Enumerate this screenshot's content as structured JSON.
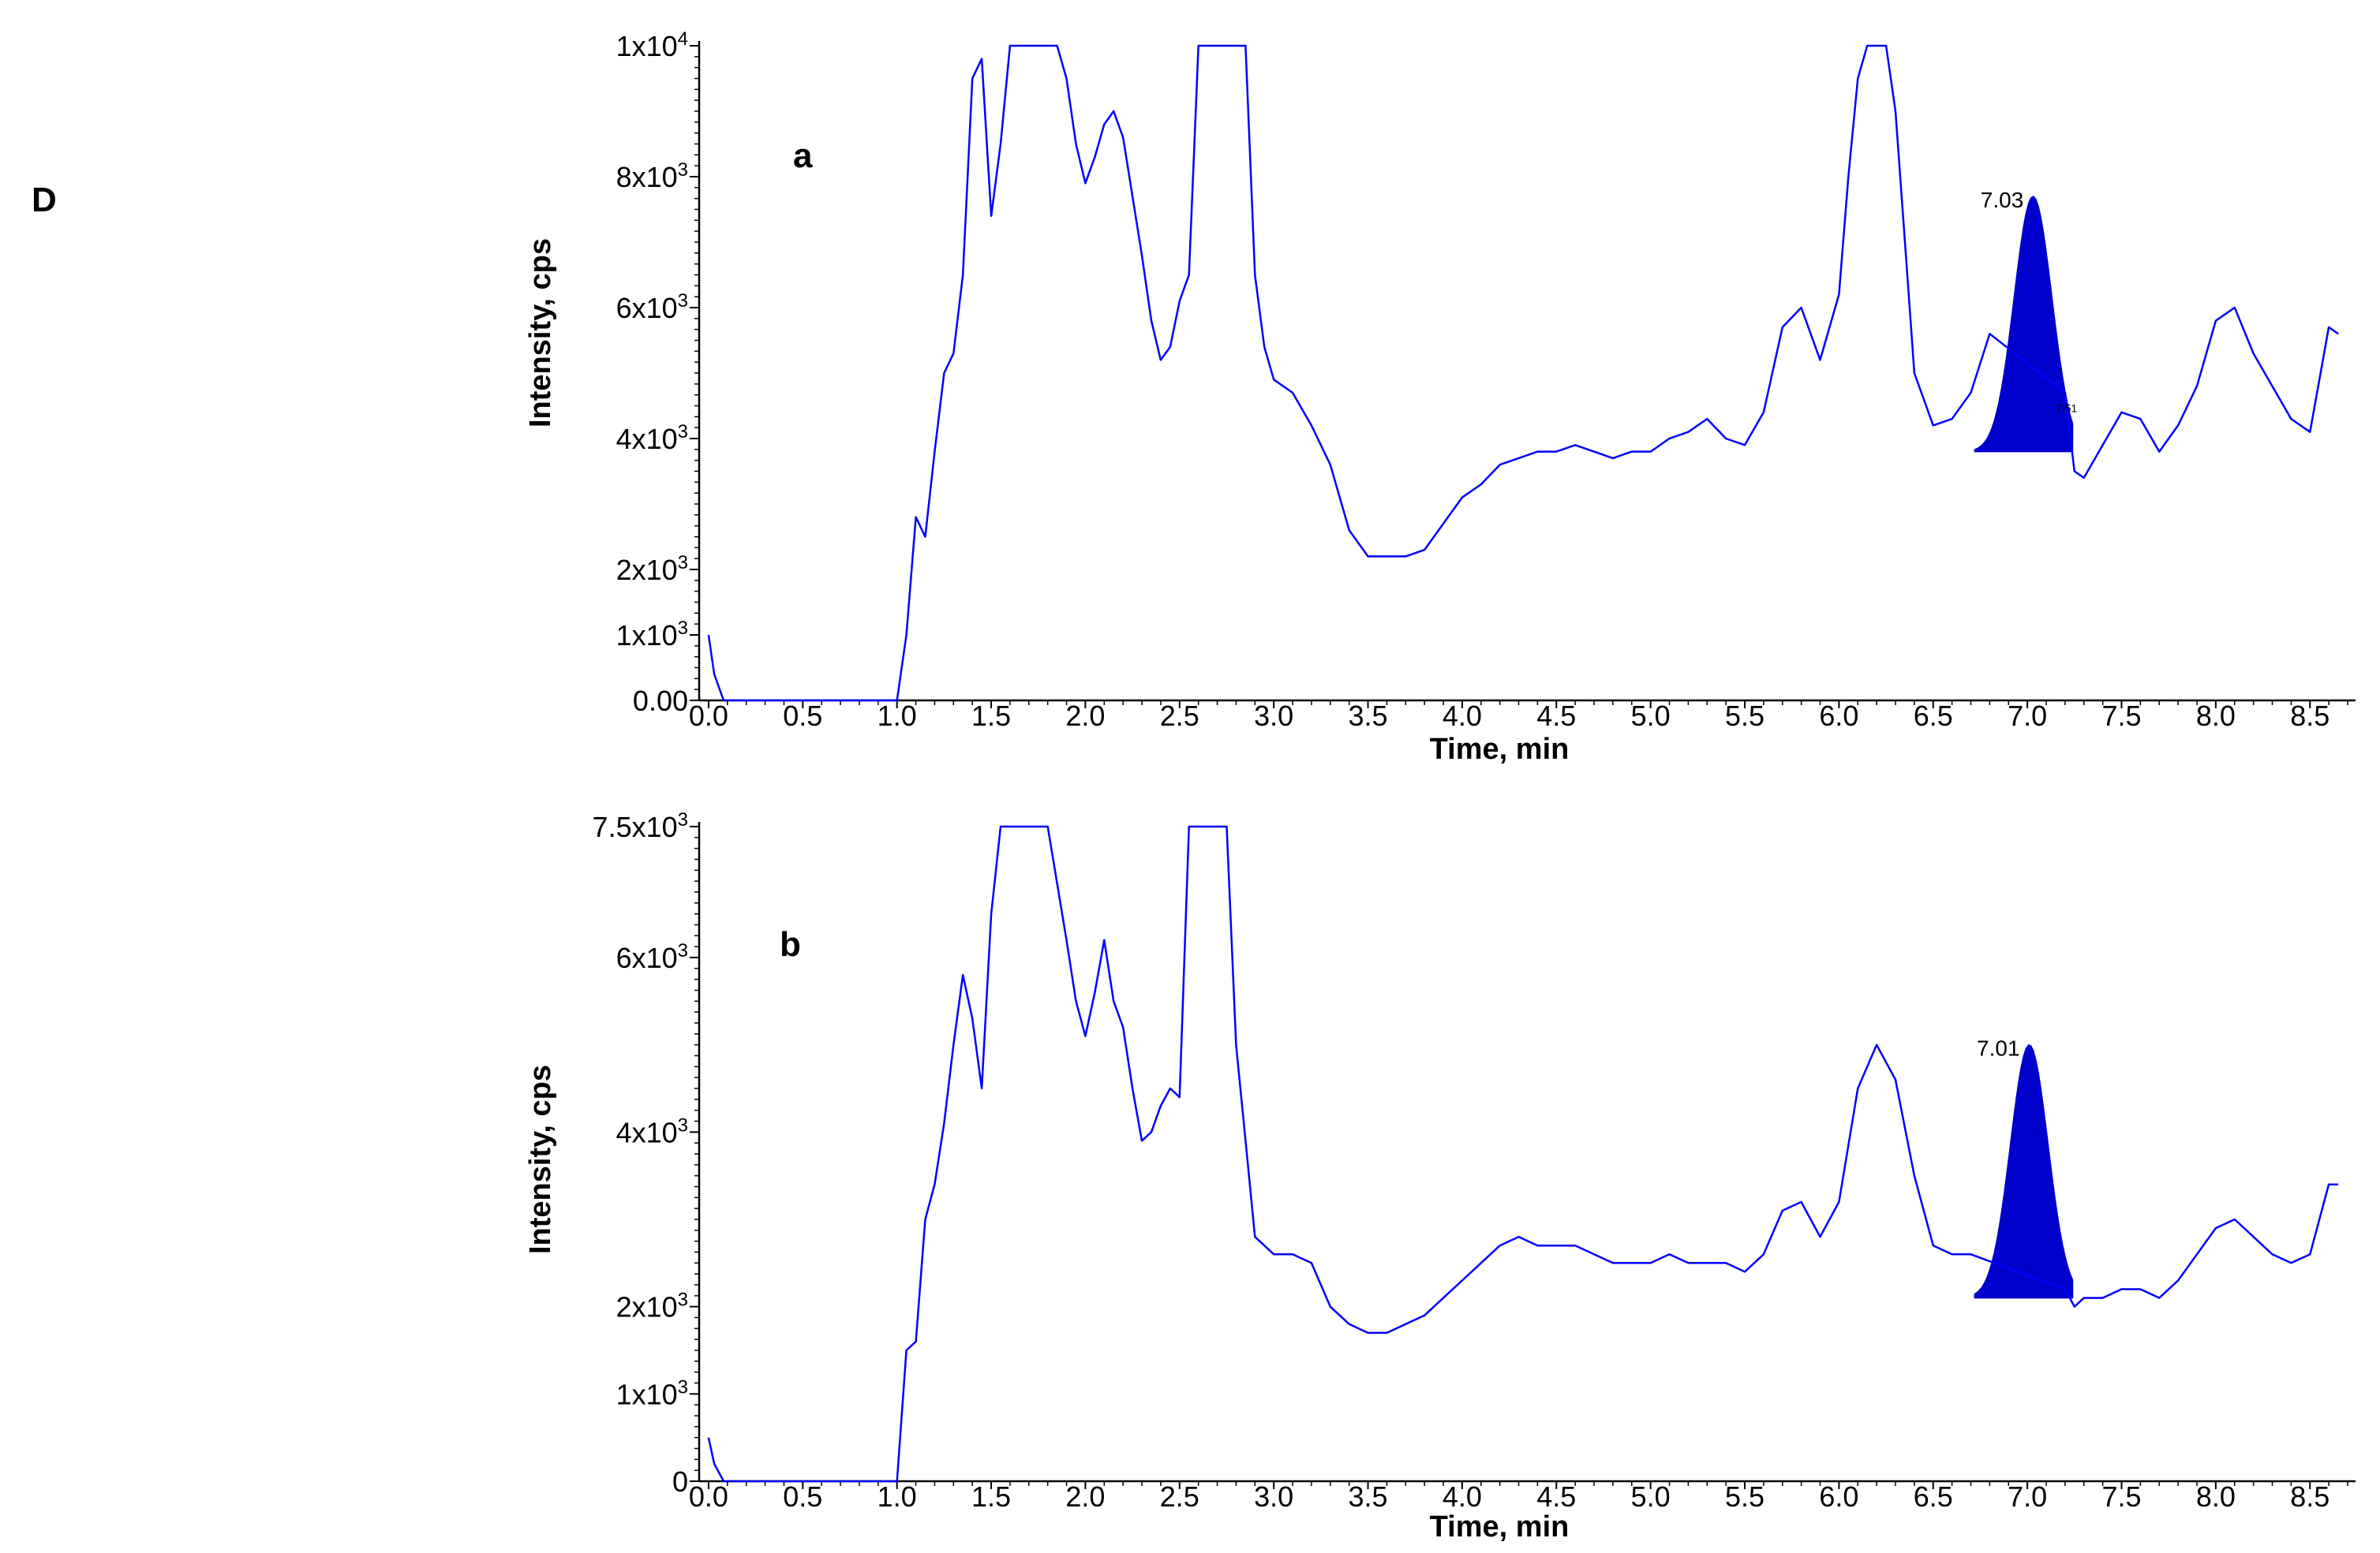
{
  "figure_label": "D",
  "colors": {
    "trace": "#0000FF",
    "peak_fill": "#0000CC",
    "axis": "#000000"
  },
  "chart_data": [
    {
      "type": "line",
      "panel_label": "a",
      "xlabel": "Time, min",
      "ylabel": "Intensity, cps",
      "xlim": [
        -0.05,
        8.7
      ],
      "ylim": [
        0,
        10000
      ],
      "x_ticks": [
        0.0,
        0.5,
        1.0,
        1.5,
        2.0,
        2.5,
        3.0,
        3.5,
        4.0,
        4.5,
        5.0,
        5.5,
        6.0,
        6.5,
        7.0,
        7.5,
        8.0,
        8.5
      ],
      "x_tick_labels": [
        "0.0",
        "0.5",
        "1.0",
        "1.5",
        "2.0",
        "2.5",
        "3.0",
        "3.5",
        "4.0",
        "4.5",
        "5.0",
        "5.5",
        "6.0",
        "6.5",
        "7.0",
        "7.5",
        "8.0",
        "8.5"
      ],
      "y_ticks": [
        0,
        1000,
        2000,
        4000,
        6000,
        8000,
        10000
      ],
      "y_tick_labels": [
        {
          "mantissa": "0.00",
          "exp": ""
        },
        {
          "mantissa": "1x10",
          "exp": "3"
        },
        {
          "mantissa": "2x10",
          "exp": "3"
        },
        {
          "mantissa": "4x10",
          "exp": "3"
        },
        {
          "mantissa": "6x10",
          "exp": "3"
        },
        {
          "mantissa": "8x10",
          "exp": "3"
        },
        {
          "mantissa": "1x10",
          "exp": "4"
        }
      ],
      "series": [
        {
          "x": [
            0.0,
            0.03,
            0.08,
            0.2,
            0.5,
            0.8,
            1.0,
            1.05,
            1.1,
            1.15,
            1.2,
            1.25,
            1.3,
            1.35,
            1.4,
            1.45,
            1.5,
            1.55,
            1.6,
            1.65,
            1.85,
            1.9,
            1.95,
            2.0,
            2.05,
            2.1,
            2.15,
            2.2,
            2.25,
            2.3,
            2.35,
            2.4,
            2.45,
            2.5,
            2.55,
            2.6,
            2.65,
            2.85,
            2.9,
            2.95,
            3.0,
            3.1,
            3.2,
            3.3,
            3.4,
            3.5,
            3.6,
            3.7,
            3.8,
            3.9,
            4.0,
            4.1,
            4.2,
            4.3,
            4.4,
            4.5,
            4.6,
            4.7,
            4.8,
            4.9,
            5.0,
            5.1,
            5.2,
            5.3,
            5.4,
            5.5,
            5.6,
            5.7,
            5.8,
            5.9,
            6.0,
            6.05,
            6.1,
            6.15,
            6.25,
            6.3,
            6.35,
            6.4,
            6.5,
            6.6,
            6.7,
            6.8,
            7.2,
            7.25,
            7.3,
            7.4,
            7.5,
            7.6,
            7.7,
            7.8,
            7.9,
            8.0,
            8.1,
            8.2,
            8.3,
            8.4,
            8.5,
            8.6,
            8.65
          ],
          "y": [
            1000,
            400,
            0,
            0,
            0,
            0,
            0,
            1000,
            2800,
            2500,
            3800,
            5000,
            5300,
            6500,
            9500,
            9800,
            7400,
            8500,
            10000,
            10000,
            10000,
            9500,
            8500,
            7900,
            8300,
            8800,
            9000,
            8600,
            7700,
            6800,
            5800,
            5200,
            5400,
            6100,
            6500,
            10000,
            10000,
            10000,
            6500,
            5400,
            4900,
            4700,
            4200,
            3600,
            2600,
            2200,
            2200,
            2200,
            2300,
            2700,
            3100,
            3300,
            3600,
            3700,
            3800,
            3800,
            3900,
            3800,
            3700,
            3800,
            3800,
            4000,
            4100,
            4300,
            4000,
            3900,
            4400,
            5700,
            6000,
            5200,
            6200,
            8000,
            9500,
            10000,
            10000,
            9000,
            7000,
            5000,
            4200,
            4300,
            4700,
            5600,
            4700,
            3500,
            3400,
            3900,
            4400,
            4300,
            3800,
            4200,
            4800,
            5800,
            6000,
            5300,
            4800,
            4300,
            4100,
            5700,
            5600
          ]
        }
      ],
      "peak": {
        "label": "7.03",
        "apex_x": 7.03,
        "apex_y": 7700,
        "start_x": 6.72,
        "end_x": 7.24,
        "baseline_y": 3800,
        "minor_label": "7.51",
        "minor_x": 7.15,
        "minor_y": 4500
      }
    },
    {
      "type": "line",
      "panel_label": "b",
      "xlabel": "Time, min",
      "ylabel": "Intensity, cps",
      "xlim": [
        -0.05,
        8.7
      ],
      "ylim": [
        0,
        7500
      ],
      "x_ticks": [
        0.0,
        0.5,
        1.0,
        1.5,
        2.0,
        2.5,
        3.0,
        3.5,
        4.0,
        4.5,
        5.0,
        5.5,
        6.0,
        6.5,
        7.0,
        7.5,
        8.0,
        8.5
      ],
      "x_tick_labels": [
        "0.0",
        "0.5",
        "1.0",
        "1.5",
        "2.0",
        "2.5",
        "3.0",
        "3.5",
        "4.0",
        "4.5",
        "5.0",
        "5.5",
        "6.0",
        "6.5",
        "7.0",
        "7.5",
        "8.0",
        "8.5"
      ],
      "y_ticks": [
        0,
        1000,
        2000,
        4000,
        6000,
        7500
      ],
      "y_tick_labels": [
        {
          "mantissa": "0",
          "exp": ""
        },
        {
          "mantissa": "1x10",
          "exp": "3"
        },
        {
          "mantissa": "2x10",
          "exp": "3"
        },
        {
          "mantissa": "4x10",
          "exp": "3"
        },
        {
          "mantissa": "6x10",
          "exp": "3"
        },
        {
          "mantissa": "7.5x10",
          "exp": "3"
        }
      ],
      "series": [
        {
          "x": [
            0.0,
            0.03,
            0.08,
            0.2,
            0.5,
            0.8,
            1.0,
            1.05,
            1.1,
            1.15,
            1.2,
            1.25,
            1.3,
            1.35,
            1.4,
            1.45,
            1.5,
            1.55,
            1.6,
            1.65,
            1.8,
            1.9,
            1.95,
            2.0,
            2.05,
            2.1,
            2.15,
            2.2,
            2.25,
            2.3,
            2.35,
            2.4,
            2.45,
            2.5,
            2.55,
            2.6,
            2.65,
            2.75,
            2.8,
            2.85,
            2.9,
            3.0,
            3.1,
            3.2,
            3.3,
            3.4,
            3.5,
            3.6,
            3.7,
            3.8,
            3.9,
            4.0,
            4.1,
            4.2,
            4.3,
            4.4,
            4.5,
            4.6,
            4.7,
            4.8,
            4.9,
            5.0,
            5.1,
            5.2,
            5.3,
            5.4,
            5.5,
            5.6,
            5.7,
            5.8,
            5.9,
            6.0,
            6.1,
            6.2,
            6.3,
            6.4,
            6.5,
            6.6,
            6.7,
            7.2,
            7.25,
            7.3,
            7.4,
            7.5,
            7.6,
            7.7,
            7.8,
            7.9,
            8.0,
            8.1,
            8.2,
            8.3,
            8.4,
            8.5,
            8.6,
            8.65
          ],
          "y": [
            500,
            200,
            0,
            0,
            0,
            0,
            0,
            1500,
            1600,
            3000,
            3400,
            4100,
            5000,
            5800,
            5300,
            4500,
            6500,
            7500,
            7500,
            7500,
            7500,
            6200,
            5500,
            5100,
            5600,
            6200,
            5500,
            5200,
            4500,
            3900,
            4000,
            4300,
            4500,
            4400,
            7500,
            7500,
            7500,
            7500,
            5000,
            3900,
            2800,
            2600,
            2600,
            2500,
            2000,
            1800,
            1700,
            1700,
            1800,
            1900,
            2100,
            2300,
            2500,
            2700,
            2800,
            2700,
            2700,
            2700,
            2600,
            2500,
            2500,
            2500,
            2600,
            2500,
            2500,
            2500,
            2400,
            2600,
            3100,
            3200,
            2800,
            3200,
            4500,
            5000,
            4600,
            3500,
            2700,
            2600,
            2600,
            2200,
            2000,
            2100,
            2100,
            2200,
            2200,
            2100,
            2300,
            2600,
            2900,
            3000,
            2800,
            2600,
            2500,
            2600,
            3400,
            3400
          ]
        }
      ],
      "peak": {
        "label": "7.01",
        "apex_x": 7.01,
        "apex_y": 5000,
        "start_x": 6.72,
        "end_x": 7.24,
        "baseline_y": 2100
      }
    }
  ]
}
